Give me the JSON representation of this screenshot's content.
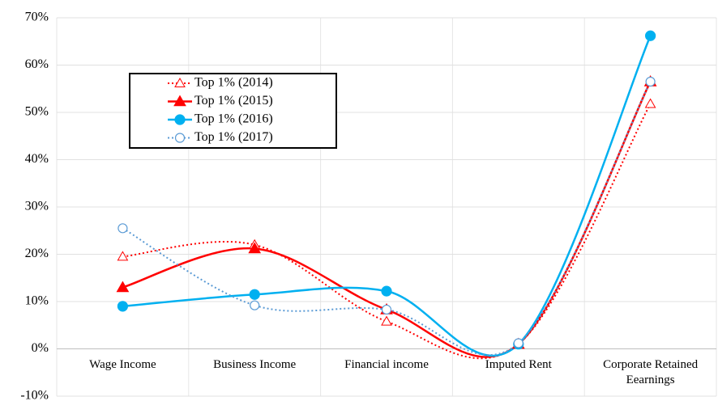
{
  "chart_data": {
    "type": "line",
    "categories": [
      "Wage Income",
      "Business Income",
      "Financial income",
      "Imputed Rent",
      "Corporate Retained Eearnings"
    ],
    "series": [
      {
        "name": "Top 1% (2014)",
        "color": "#ff0000",
        "line": "dotted",
        "marker": "triangle",
        "marker_filled": false,
        "values": [
          19.5,
          22,
          5.8,
          1,
          51.8
        ]
      },
      {
        "name": "Top 1% (2015)",
        "color": "#ff0000",
        "line": "solid",
        "marker": "triangle",
        "marker_filled": true,
        "values": [
          13,
          21.2,
          8.3,
          1,
          56.5
        ]
      },
      {
        "name": "Top 1% (2016)",
        "color": "#00b0f0",
        "line": "solid",
        "marker": "circle",
        "marker_filled": true,
        "values": [
          9,
          11.5,
          12.2,
          1,
          66.2
        ]
      },
      {
        "name": "Top 1% (2017)",
        "color": "#5b9bd5",
        "line": "dotted",
        "marker": "circle",
        "marker_filled": false,
        "values": [
          25.5,
          9.2,
          8.3,
          1.2,
          56.5
        ]
      }
    ],
    "ylim": [
      -10,
      70
    ],
    "yticks": [
      {
        "value": -10,
        "label": "-10%"
      },
      {
        "value": 0,
        "label": "0%"
      },
      {
        "value": 10,
        "label": "10%"
      },
      {
        "value": 20,
        "label": "20%"
      },
      {
        "value": 30,
        "label": "30%"
      },
      {
        "value": 40,
        "label": "40%"
      },
      {
        "value": 50,
        "label": "50%"
      },
      {
        "value": 60,
        "label": "60%"
      },
      {
        "value": 70,
        "label": "70%"
      }
    ],
    "grid": true,
    "smooth": true
  }
}
